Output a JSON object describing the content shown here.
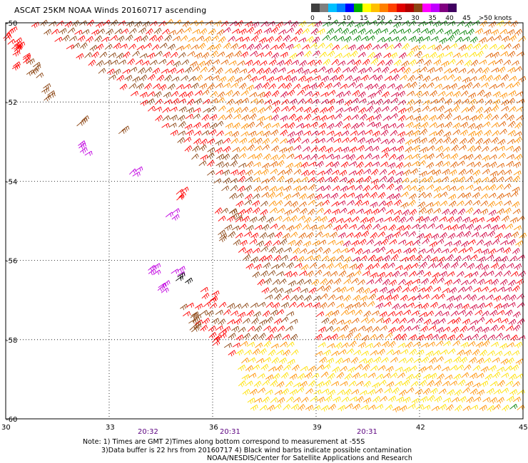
{
  "title": "ASCAT 25KM NOAA Winds 20160717 ascending",
  "colorbar": {
    "colors": [
      "#404040",
      "#7f7f7f",
      "#00c0ff",
      "#0080ff",
      "#0000ff",
      "#00b000",
      "#ffff00",
      "#ffc000",
      "#ff8000",
      "#ff4000",
      "#e00000",
      "#b00000",
      "#8b4513",
      "#ff00ff",
      "#c000ff",
      "#800080",
      "#400060"
    ],
    "labels": [
      "0",
      "5",
      "10",
      "15",
      "20",
      "25",
      "30",
      "35",
      "40",
      "45",
      ">50 knots"
    ]
  },
  "map": {
    "lon_ticks": [
      "30",
      "33",
      "36",
      "39",
      "42",
      "45"
    ],
    "lat_ticks": [
      "-50",
      "-52",
      "-54",
      "-56",
      "-58",
      "-60"
    ],
    "times": [
      "20:32",
      "20:31",
      "20:31"
    ],
    "wind_colors": {
      "green": "#008000",
      "yellow": "#ffe000",
      "orange": "#ff9000",
      "dark_orange": "#e06000",
      "red": "#ff0000",
      "crimson": "#d00040",
      "brown": "#8b4513",
      "magenta": "#c000e0",
      "black": "#000000"
    }
  },
  "notes": {
    "line1": "Note: 1) Times are GMT 2)Times along bottom correspond to measurement at -55S",
    "line2": "3)Data buffer is 22 hrs from 20160717 4) Black wind barbs indicate possible contamination",
    "line3": "NOAA/NESDIS/Center for Satellite Applications and Research"
  }
}
